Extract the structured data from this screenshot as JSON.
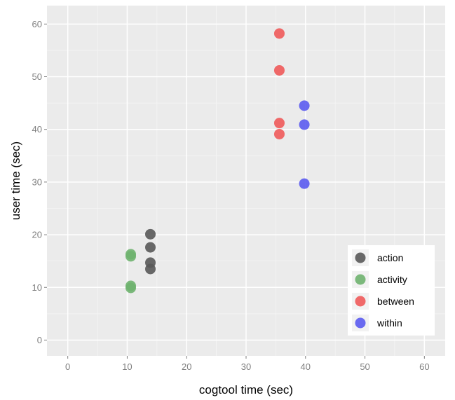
{
  "chart_data": {
    "type": "scatter",
    "xlabel": "cogtool time (sec)",
    "ylabel": "user time (sec)",
    "xlim": [
      -3.5,
      63.5
    ],
    "ylim": [
      -3,
      63.5
    ],
    "x_ticks": [
      0,
      10,
      20,
      30,
      40,
      50,
      60
    ],
    "y_ticks": [
      0,
      10,
      20,
      30,
      40,
      50,
      60
    ],
    "x_tick_labels": [
      "0",
      "10",
      "20",
      "30",
      "40",
      "50",
      "60"
    ],
    "y_tick_labels": [
      "0",
      "10",
      "20",
      "30",
      "40",
      "50",
      "60"
    ],
    "grid": true,
    "panel_background": "#ebebeb",
    "legend_position": "bottom-right",
    "series": [
      {
        "name": "action",
        "color": "#595959",
        "points": [
          [
            13.9,
            20.1
          ],
          [
            13.9,
            17.6
          ],
          [
            13.9,
            14.7
          ],
          [
            13.9,
            13.5
          ]
        ]
      },
      {
        "name": "activity",
        "color": "#6fb36f",
        "points": [
          [
            10.6,
            16.3
          ],
          [
            10.6,
            15.9
          ],
          [
            10.6,
            10.3
          ],
          [
            10.6,
            9.9
          ]
        ]
      },
      {
        "name": "between",
        "color": "#ef5a5a",
        "points": [
          [
            35.6,
            58.2
          ],
          [
            35.6,
            51.2
          ],
          [
            35.6,
            41.2
          ],
          [
            35.6,
            39.1
          ]
        ]
      },
      {
        "name": "within",
        "color": "#5b5bf0",
        "points": [
          [
            39.8,
            44.5
          ],
          [
            39.8,
            40.9
          ],
          [
            39.8,
            29.7
          ]
        ]
      }
    ]
  }
}
